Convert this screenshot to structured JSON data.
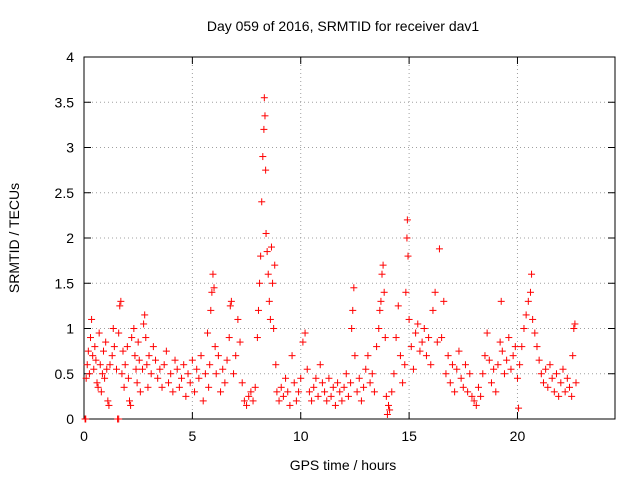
{
  "chart_data": {
    "type": "scatter",
    "title": "Day 059 of 2016, SRMTID for receiver dav1",
    "xlabel": "GPS time / hours",
    "ylabel": "SRMTID / TECUs",
    "xlim": [
      0,
      24.5
    ],
    "ylim": [
      0,
      4
    ],
    "xticks": [
      0,
      5,
      10,
      15,
      20
    ],
    "xtick_labels": [
      "0",
      "5",
      "10",
      "15",
      "20"
    ],
    "yticks": [
      0,
      0.5,
      1,
      1.5,
      2,
      2.5,
      3,
      3.5,
      4
    ],
    "ytick_labels": [
      "0",
      "0.5",
      "1",
      "1.5",
      "2",
      "2.5",
      "3",
      "3.5",
      "4"
    ],
    "grid": true,
    "marker": "+",
    "series": [
      {
        "name": "dav1",
        "color": "#ff0000",
        "points": [
          [
            0.05,
            0.0
          ],
          [
            0.08,
            0.0
          ],
          [
            1.55,
            0.0
          ],
          [
            1.6,
            0.0
          ],
          [
            0.1,
            0.45
          ],
          [
            0.15,
            0.6
          ],
          [
            0.2,
            0.75
          ],
          [
            0.25,
            0.5
          ],
          [
            0.3,
            0.9
          ],
          [
            0.35,
            1.1
          ],
          [
            0.4,
            0.7
          ],
          [
            0.45,
            0.55
          ],
          [
            0.5,
            0.8
          ],
          [
            0.55,
            0.65
          ],
          [
            0.6,
            0.4
          ],
          [
            0.65,
            0.35
          ],
          [
            0.7,
            0.95
          ],
          [
            0.75,
            0.6
          ],
          [
            0.8,
            0.3
          ],
          [
            0.85,
            0.5
          ],
          [
            0.9,
            0.75
          ],
          [
            0.95,
            0.45
          ],
          [
            1.0,
            0.85
          ],
          [
            1.05,
            0.55
          ],
          [
            1.1,
            0.2
          ],
          [
            1.15,
            0.15
          ],
          [
            1.2,
            0.6
          ],
          [
            1.3,
            0.7
          ],
          [
            1.35,
            1.0
          ],
          [
            1.4,
            0.8
          ],
          [
            1.5,
            0.55
          ],
          [
            1.6,
            0.95
          ],
          [
            1.65,
            1.25
          ],
          [
            1.7,
            1.3
          ],
          [
            1.75,
            0.5
          ],
          [
            1.8,
            0.75
          ],
          [
            1.85,
            0.35
          ],
          [
            1.9,
            0.6
          ],
          [
            2.0,
            0.8
          ],
          [
            2.05,
            0.45
          ],
          [
            2.1,
            0.2
          ],
          [
            2.15,
            0.15
          ],
          [
            2.2,
            0.9
          ],
          [
            2.3,
            1.0
          ],
          [
            2.35,
            0.7
          ],
          [
            2.4,
            0.55
          ],
          [
            2.45,
            0.4
          ],
          [
            2.5,
            0.85
          ],
          [
            2.55,
            0.65
          ],
          [
            2.6,
            0.3
          ],
          [
            2.7,
            0.55
          ],
          [
            2.75,
            1.05
          ],
          [
            2.8,
            1.15
          ],
          [
            2.85,
            0.9
          ],
          [
            2.9,
            0.6
          ],
          [
            2.95,
            0.35
          ],
          [
            3.0,
            0.7
          ],
          [
            3.1,
            0.5
          ],
          [
            3.2,
            0.8
          ],
          [
            3.3,
            0.65
          ],
          [
            3.4,
            0.45
          ],
          [
            3.5,
            0.55
          ],
          [
            3.6,
            0.35
          ],
          [
            3.7,
            0.6
          ],
          [
            3.8,
            0.75
          ],
          [
            3.9,
            0.4
          ],
          [
            4.0,
            0.5
          ],
          [
            4.1,
            0.3
          ],
          [
            4.2,
            0.65
          ],
          [
            4.3,
            0.55
          ],
          [
            4.4,
            0.35
          ],
          [
            4.5,
            0.45
          ],
          [
            4.6,
            0.6
          ],
          [
            4.7,
            0.25
          ],
          [
            4.8,
            0.5
          ],
          [
            4.9,
            0.4
          ],
          [
            5.0,
            0.65
          ],
          [
            5.1,
            0.3
          ],
          [
            5.2,
            0.55
          ],
          [
            5.3,
            0.45
          ],
          [
            5.4,
            0.7
          ],
          [
            5.5,
            0.2
          ],
          [
            5.6,
            0.5
          ],
          [
            5.7,
            0.95
          ],
          [
            5.75,
            0.35
          ],
          [
            5.8,
            0.6
          ],
          [
            5.85,
            1.2
          ],
          [
            5.9,
            1.4
          ],
          [
            5.95,
            1.6
          ],
          [
            6.0,
            1.45
          ],
          [
            6.05,
            0.8
          ],
          [
            6.1,
            0.5
          ],
          [
            6.2,
            0.7
          ],
          [
            6.3,
            0.3
          ],
          [
            6.4,
            0.55
          ],
          [
            6.5,
            0.4
          ],
          [
            6.6,
            0.65
          ],
          [
            6.7,
            0.9
          ],
          [
            6.75,
            1.25
          ],
          [
            6.8,
            1.3
          ],
          [
            6.9,
            0.5
          ],
          [
            7.0,
            0.7
          ],
          [
            7.1,
            1.1
          ],
          [
            7.2,
            0.85
          ],
          [
            7.3,
            0.4
          ],
          [
            7.4,
            0.2
          ],
          [
            7.5,
            0.15
          ],
          [
            7.6,
            0.25
          ],
          [
            7.7,
            0.3
          ],
          [
            7.8,
            0.2
          ],
          [
            7.9,
            0.35
          ],
          [
            8.0,
            0.9
          ],
          [
            8.05,
            1.2
          ],
          [
            8.1,
            1.5
          ],
          [
            8.15,
            1.8
          ],
          [
            8.2,
            2.4
          ],
          [
            8.25,
            2.9
          ],
          [
            8.3,
            3.2
          ],
          [
            8.32,
            3.55
          ],
          [
            8.35,
            3.35
          ],
          [
            8.38,
            2.75
          ],
          [
            8.4,
            2.05
          ],
          [
            8.45,
            1.85
          ],
          [
            8.5,
            1.6
          ],
          [
            8.55,
            1.3
          ],
          [
            8.6,
            1.1
          ],
          [
            8.65,
            1.9
          ],
          [
            8.7,
            1.5
          ],
          [
            8.75,
            1.0
          ],
          [
            8.8,
            1.7
          ],
          [
            8.85,
            0.6
          ],
          [
            8.9,
            0.3
          ],
          [
            9.0,
            0.2
          ],
          [
            9.1,
            0.35
          ],
          [
            9.2,
            0.25
          ],
          [
            9.3,
            0.45
          ],
          [
            9.4,
            0.3
          ],
          [
            9.5,
            0.15
          ],
          [
            9.6,
            0.7
          ],
          [
            9.7,
            0.4
          ],
          [
            9.8,
            0.2
          ],
          [
            9.9,
            0.3
          ],
          [
            10.0,
            0.45
          ],
          [
            10.1,
            0.85
          ],
          [
            10.2,
            0.95
          ],
          [
            10.3,
            0.55
          ],
          [
            10.4,
            0.3
          ],
          [
            10.5,
            0.2
          ],
          [
            10.6,
            0.35
          ],
          [
            10.7,
            0.45
          ],
          [
            10.8,
            0.25
          ],
          [
            10.9,
            0.6
          ],
          [
            11.0,
            0.4
          ],
          [
            11.1,
            0.3
          ],
          [
            11.2,
            0.2
          ],
          [
            11.3,
            0.45
          ],
          [
            11.4,
            0.25
          ],
          [
            11.5,
            0.35
          ],
          [
            11.6,
            0.15
          ],
          [
            11.7,
            0.4
          ],
          [
            11.8,
            0.3
          ],
          [
            11.9,
            0.2
          ],
          [
            12.0,
            0.35
          ],
          [
            12.1,
            0.5
          ],
          [
            12.2,
            0.25
          ],
          [
            12.3,
            0.4
          ],
          [
            12.35,
            1.0
          ],
          [
            12.4,
            1.2
          ],
          [
            12.45,
            1.45
          ],
          [
            12.5,
            0.7
          ],
          [
            12.6,
            0.3
          ],
          [
            12.7,
            0.45
          ],
          [
            12.8,
            0.2
          ],
          [
            12.9,
            0.35
          ],
          [
            13.0,
            0.55
          ],
          [
            13.1,
            0.7
          ],
          [
            13.2,
            0.4
          ],
          [
            13.3,
            0.5
          ],
          [
            13.4,
            0.3
          ],
          [
            13.5,
            0.8
          ],
          [
            13.6,
            1.0
          ],
          [
            13.65,
            1.2
          ],
          [
            13.7,
            1.3
          ],
          [
            13.75,
            1.6
          ],
          [
            13.8,
            1.7
          ],
          [
            13.85,
            1.4
          ],
          [
            13.9,
            0.9
          ],
          [
            13.95,
            0.25
          ],
          [
            14.0,
            0.05
          ],
          [
            14.05,
            0.15
          ],
          [
            14.1,
            0.1
          ],
          [
            14.2,
            0.3
          ],
          [
            14.3,
            0.5
          ],
          [
            14.4,
            0.9
          ],
          [
            14.5,
            1.25
          ],
          [
            14.6,
            0.7
          ],
          [
            14.7,
            0.4
          ],
          [
            14.8,
            0.6
          ],
          [
            14.85,
            1.4
          ],
          [
            14.9,
            2.0
          ],
          [
            14.92,
            2.2
          ],
          [
            14.95,
            1.8
          ],
          [
            15.0,
            1.1
          ],
          [
            15.1,
            0.8
          ],
          [
            15.2,
            0.55
          ],
          [
            15.3,
            0.95
          ],
          [
            15.4,
            1.05
          ],
          [
            15.5,
            0.75
          ],
          [
            15.6,
            0.85
          ],
          [
            15.7,
            1.0
          ],
          [
            15.8,
            0.7
          ],
          [
            15.9,
            0.9
          ],
          [
            16.0,
            0.6
          ],
          [
            16.1,
            1.2
          ],
          [
            16.2,
            1.4
          ],
          [
            16.3,
            0.85
          ],
          [
            16.4,
            1.88
          ],
          [
            16.5,
            0.9
          ],
          [
            16.6,
            1.3
          ],
          [
            16.7,
            0.5
          ],
          [
            16.8,
            0.7
          ],
          [
            16.9,
            0.4
          ],
          [
            17.0,
            0.6
          ],
          [
            17.1,
            0.3
          ],
          [
            17.2,
            0.55
          ],
          [
            17.3,
            0.75
          ],
          [
            17.4,
            0.45
          ],
          [
            17.5,
            0.35
          ],
          [
            17.6,
            0.6
          ],
          [
            17.7,
            0.3
          ],
          [
            17.8,
            0.5
          ],
          [
            17.9,
            0.25
          ],
          [
            18.0,
            0.2
          ],
          [
            18.1,
            0.15
          ],
          [
            18.2,
            0.35
          ],
          [
            18.3,
            0.25
          ],
          [
            18.4,
            0.5
          ],
          [
            18.5,
            0.7
          ],
          [
            18.6,
            0.95
          ],
          [
            18.7,
            0.65
          ],
          [
            18.8,
            0.4
          ],
          [
            18.9,
            0.55
          ],
          [
            19.0,
            0.3
          ],
          [
            19.1,
            0.6
          ],
          [
            19.2,
            0.85
          ],
          [
            19.25,
            1.3
          ],
          [
            19.3,
            0.75
          ],
          [
            19.4,
            0.5
          ],
          [
            19.5,
            0.65
          ],
          [
            19.6,
            0.9
          ],
          [
            19.7,
            0.55
          ],
          [
            19.8,
            0.7
          ],
          [
            19.9,
            0.8
          ],
          [
            20.0,
            0.45
          ],
          [
            20.05,
            0.12
          ],
          [
            20.1,
            0.6
          ],
          [
            20.2,
            0.8
          ],
          [
            20.3,
            1.0
          ],
          [
            20.4,
            1.15
          ],
          [
            20.5,
            1.3
          ],
          [
            20.6,
            1.4
          ],
          [
            20.65,
            1.6
          ],
          [
            20.7,
            1.1
          ],
          [
            20.8,
            0.95
          ],
          [
            20.9,
            0.8
          ],
          [
            21.0,
            0.65
          ],
          [
            21.1,
            0.5
          ],
          [
            21.2,
            0.4
          ],
          [
            21.3,
            0.55
          ],
          [
            21.4,
            0.35
          ],
          [
            21.5,
            0.6
          ],
          [
            21.6,
            0.45
          ],
          [
            21.7,
            0.3
          ],
          [
            21.8,
            0.5
          ],
          [
            21.9,
            0.25
          ],
          [
            22.0,
            0.4
          ],
          [
            22.1,
            0.55
          ],
          [
            22.2,
            0.3
          ],
          [
            22.3,
            0.45
          ],
          [
            22.4,
            0.35
          ],
          [
            22.5,
            0.25
          ],
          [
            22.55,
            0.7
          ],
          [
            22.6,
            1.0
          ],
          [
            22.65,
            1.05
          ],
          [
            22.7,
            0.4
          ]
        ]
      }
    ]
  }
}
